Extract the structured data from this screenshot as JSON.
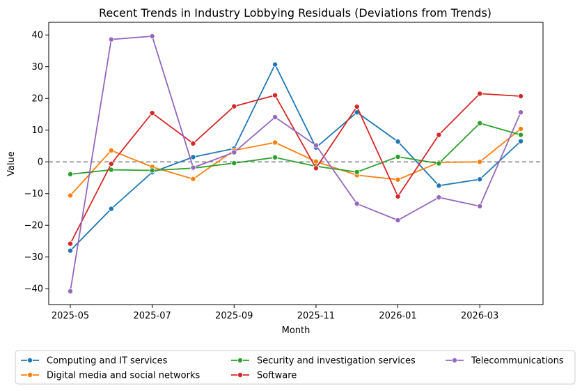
{
  "chart_data": {
    "type": "line",
    "title": "Recent Trends in Industry Lobbying Residuals (Deviations from Trends)",
    "xlabel": "Month",
    "ylabel": "Value",
    "x": [
      "2025-05",
      "2025-06",
      "2025-07",
      "2025-08",
      "2025-09",
      "2025-10",
      "2025-11",
      "2025-12",
      "2026-01",
      "2026-02",
      "2026-03",
      "2026-04"
    ],
    "x_ticks": [
      "2025-05",
      "2025-07",
      "2025-09",
      "2025-11",
      "2026-01",
      "2026-03"
    ],
    "y_ticks": [
      40,
      30,
      20,
      10,
      0,
      -10,
      -20,
      -30,
      -40
    ],
    "ylim": [
      -45,
      44
    ],
    "grid": false,
    "reference_line": {
      "y": 0,
      "style": "dashed",
      "color": "#808080"
    },
    "legend_position": "bottom",
    "series": [
      {
        "name": "Computing and IT services",
        "color": "#1f77b4",
        "values": [
          -28.0,
          -14.8,
          -3.3,
          1.5,
          4.2,
          30.7,
          4.5,
          15.6,
          6.4,
          -7.5,
          -5.5,
          6.5
        ]
      },
      {
        "name": "Digital media and social networks",
        "color": "#ff7f0e",
        "values": [
          -10.6,
          3.6,
          -1.6,
          -5.4,
          3.6,
          6.1,
          0.1,
          -4.2,
          -5.6,
          -0.2,
          0.0,
          10.4
        ]
      },
      {
        "name": "Security and investigation services",
        "color": "#2ca02c",
        "values": [
          -3.9,
          -2.5,
          -2.7,
          -2.0,
          -0.4,
          1.4,
          -1.4,
          -3.2,
          1.6,
          -0.5,
          12.2,
          8.5
        ]
      },
      {
        "name": "Software",
        "color": "#d62728",
        "values": [
          -25.8,
          -0.6,
          15.4,
          5.8,
          17.5,
          21.0,
          -2.0,
          17.4,
          -10.9,
          8.5,
          21.5,
          20.7
        ]
      },
      {
        "name": "Telecommunications",
        "color": "#9467bd",
        "values": [
          -40.8,
          38.6,
          39.6,
          -1.8,
          3.0,
          14.1,
          5.2,
          -13.2,
          -18.4,
          -11.2,
          -14.0,
          15.6
        ]
      }
    ]
  }
}
